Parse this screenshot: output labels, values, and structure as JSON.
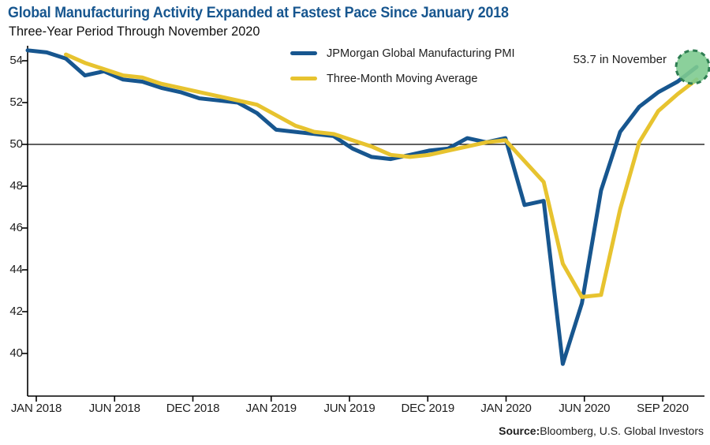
{
  "header": {
    "title": "Global Manufacturing Activity Expanded at Fastest Pace Since January 2018",
    "subtitle": "Three-Year Period Through November 2020"
  },
  "colors": {
    "title_blue": "#17568F",
    "pmi_line": "#17568F",
    "moving_average_line": "#E7C32F",
    "highlight_fill": "#7ECB90",
    "highlight_border": "#2E7D52",
    "axis": "#000000"
  },
  "legend": {
    "items": [
      {
        "label": "JPMorgan Global Manufacturing PMI",
        "color": "#17568F"
      },
      {
        "label": "Three-Month Moving Average",
        "color": "#E7C32F"
      }
    ]
  },
  "annotation": {
    "text": "53.7 in November"
  },
  "source": {
    "label": "Source:",
    "text": "Bloomberg, U.S. Global Investors"
  },
  "chart_data": {
    "type": "line",
    "title": "Global Manufacturing Activity Expanded at Fastest Pace Since January 2018",
    "subtitle": "Three-Year Period Through November 2020",
    "x": [
      "Dec 2017",
      "Jan 2018",
      "Feb 2018",
      "Mar 2018",
      "Apr 2018",
      "May 2018",
      "Jun 2018",
      "Jul 2018",
      "Aug 2018",
      "Sep 2018",
      "Oct 2018",
      "Nov 2018",
      "Dec 2018",
      "Jan 2019",
      "Feb 2019",
      "Mar 2019",
      "Apr 2019",
      "May 2019",
      "Jun 2019",
      "Jul 2019",
      "Aug 2019",
      "Sep 2019",
      "Oct 2019",
      "Nov 2019",
      "Dec 2019",
      "Jan 2020",
      "Feb 2020",
      "Mar 2020",
      "Apr 2020",
      "May 2020",
      "Jun 2020",
      "Jul 2020",
      "Aug 2020",
      "Sep 2020",
      "Oct 2020",
      "Nov 2020"
    ],
    "series": [
      {
        "name": "JPMorgan Global Manufacturing PMI",
        "color": "#17568F",
        "start_index": 0,
        "values": [
          54.5,
          54.4,
          54.1,
          53.3,
          53.5,
          53.1,
          53.0,
          52.7,
          52.5,
          52.2,
          52.1,
          52.0,
          51.5,
          50.7,
          50.6,
          50.5,
          50.4,
          49.8,
          49.4,
          49.3,
          49.5,
          49.7,
          49.8,
          50.3,
          50.1,
          50.3,
          47.1,
          47.3,
          39.5,
          42.4,
          47.8,
          50.6,
          51.8,
          52.5,
          53.0,
          53.7
        ]
      },
      {
        "name": "Three-Month Moving Average",
        "color": "#E7C32F",
        "start_index": 2,
        "values": [
          54.3,
          53.9,
          53.6,
          53.3,
          53.2,
          52.9,
          52.7,
          52.5,
          52.3,
          52.1,
          51.9,
          51.4,
          50.9,
          50.6,
          50.5,
          50.2,
          49.9,
          49.5,
          49.4,
          49.5,
          49.7,
          49.9,
          50.1,
          50.2,
          49.2,
          48.2,
          44.3,
          42.7,
          42.8,
          46.9,
          50.1,
          51.6,
          52.4,
          53.1
        ]
      }
    ],
    "y_ticks": [
      54,
      52,
      50,
      48,
      46,
      44,
      42,
      40
    ],
    "x_tick_labels": [
      "JAN 2018",
      "JUN 2018",
      "DEC 2018",
      "JAN 2019",
      "JUN 2019",
      "DEC 2019",
      "JAN 2020",
      "JUN 2020",
      "SEP 2020"
    ],
    "ylim": [
      39.0,
      55.0
    ],
    "reference_line": 50,
    "grid": false,
    "legend_position": "top-center",
    "highlight": {
      "point": "Nov 2020",
      "value": 53.7,
      "label": "53.7 in November"
    }
  }
}
